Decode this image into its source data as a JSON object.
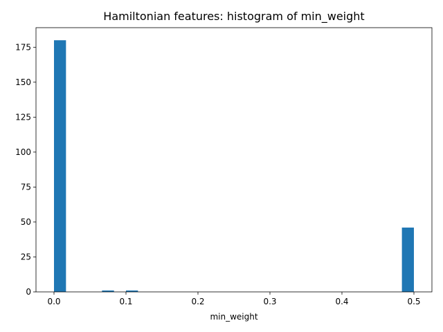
{
  "chart_data": {
    "type": "bar",
    "title": "Hamiltonian features: histogram of min_weight",
    "xlabel": "min_weight",
    "ylabel": "",
    "bin_width": 0.01667,
    "x": [
      0.0,
      0.0667,
      0.1,
      0.4833
    ],
    "values": [
      180,
      1,
      1,
      46
    ],
    "xlim": [
      -0.025,
      0.525
    ],
    "ylim": [
      0,
      189
    ],
    "xticks": [
      0.0,
      0.1,
      0.2,
      0.3,
      0.4,
      0.5
    ],
    "xtick_labels": [
      "0.0",
      "0.1",
      "0.2",
      "0.3",
      "0.4",
      "0.5"
    ],
    "yticks": [
      0,
      25,
      50,
      75,
      100,
      125,
      150,
      175
    ],
    "ytick_labels": [
      "0",
      "25",
      "50",
      "75",
      "100",
      "125",
      "150",
      "175"
    ],
    "bar_color": "#1f77b4",
    "grid": false,
    "legend": "none"
  }
}
